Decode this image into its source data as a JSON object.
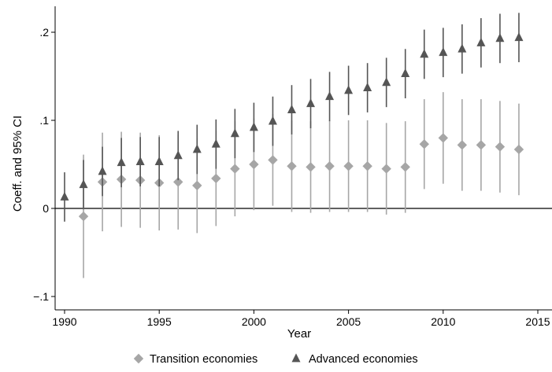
{
  "chart_data": {
    "type": "scatter",
    "xlabel": "Year",
    "ylabel": "Coeff. and 95% CI",
    "xlim": [
      1990,
      2015
    ],
    "ylim": [
      -0.1,
      0.2
    ],
    "xticks": [
      1990,
      1995,
      2000,
      2005,
      2010,
      2015
    ],
    "xtick_labels": [
      "1990",
      "1995",
      "2000",
      "2005",
      "2010",
      "2015"
    ],
    "yticks": [
      -0.1,
      0,
      0.1,
      0.2
    ],
    "ytick_labels": [
      "−.1",
      "0",
      ".1",
      ".2"
    ],
    "reference_line": 0,
    "grid": false,
    "legend_position": "bottom",
    "series": [
      {
        "name": "Transition economies",
        "marker": "diamond",
        "color": "#a6a6a6",
        "x": [
          1991,
          1992,
          1993,
          1994,
          1995,
          1996,
          1997,
          1998,
          1999,
          2000,
          2001,
          2002,
          2003,
          2004,
          2005,
          2006,
          2007,
          2008,
          2009,
          2010,
          2011,
          2012,
          2013,
          2014
        ],
        "y": [
          -0.009,
          0.03,
          0.033,
          0.032,
          0.029,
          0.03,
          0.026,
          0.034,
          0.045,
          0.05,
          0.055,
          0.048,
          0.047,
          0.048,
          0.048,
          0.048,
          0.045,
          0.047,
          0.073,
          0.08,
          0.072,
          0.072,
          0.07,
          0.067
        ],
        "ci_low": [
          -0.079,
          -0.026,
          -0.021,
          -0.022,
          -0.025,
          -0.024,
          -0.028,
          -0.02,
          -0.009,
          -0.002,
          0.003,
          -0.004,
          -0.005,
          -0.004,
          -0.004,
          -0.004,
          -0.007,
          -0.005,
          0.022,
          0.028,
          0.02,
          0.02,
          0.018,
          0.015
        ],
        "ci_high": [
          0.061,
          0.086,
          0.087,
          0.086,
          0.083,
          0.084,
          0.08,
          0.088,
          0.099,
          0.102,
          0.107,
          0.1,
          0.099,
          0.1,
          0.1,
          0.1,
          0.097,
          0.099,
          0.124,
          0.132,
          0.124,
          0.124,
          0.122,
          0.119
        ]
      },
      {
        "name": "Advanced economies",
        "marker": "triangle",
        "color": "#555555",
        "x": [
          1990,
          1991,
          1992,
          1993,
          1994,
          1995,
          1996,
          1997,
          1998,
          1999,
          2000,
          2001,
          2002,
          2003,
          2004,
          2005,
          2006,
          2007,
          2008,
          2009,
          2010,
          2011,
          2012,
          2013,
          2014
        ],
        "y": [
          0.013,
          0.027,
          0.042,
          0.052,
          0.053,
          0.053,
          0.06,
          0.067,
          0.073,
          0.085,
          0.092,
          0.099,
          0.112,
          0.119,
          0.127,
          0.134,
          0.137,
          0.143,
          0.153,
          0.175,
          0.177,
          0.181,
          0.188,
          0.193,
          0.194
        ],
        "ci_low": [
          -0.015,
          -0.001,
          0.014,
          0.024,
          0.025,
          0.025,
          0.032,
          0.039,
          0.045,
          0.057,
          0.064,
          0.071,
          0.084,
          0.091,
          0.099,
          0.106,
          0.109,
          0.115,
          0.125,
          0.147,
          0.149,
          0.153,
          0.16,
          0.165,
          0.166
        ]
      }
    ]
  }
}
